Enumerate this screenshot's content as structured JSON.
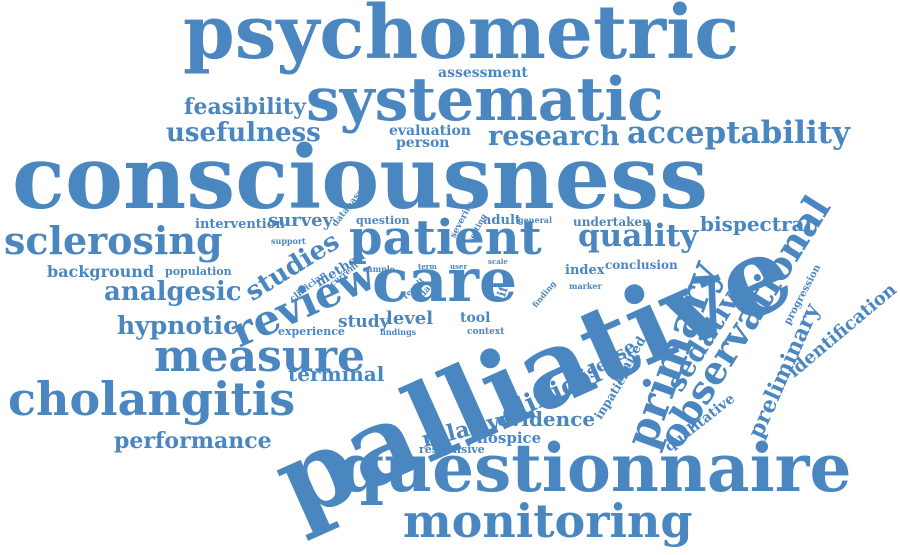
{
  "color": "#4a86c0",
  "words": [
    "psychometric",
    "systematic",
    "assessment",
    "feasibility",
    "usefulness",
    "evaluation",
    "person",
    "research",
    "acceptability",
    "consciousness",
    "database",
    "intervention",
    "survey",
    "question",
    "severity",
    "setting",
    "adult",
    "general",
    "undertaken",
    "bispectral",
    "sclerosing",
    "support",
    "patient",
    "quality",
    "studies",
    "current",
    "method",
    "sample",
    "term",
    "user",
    "scale",
    "background",
    "population",
    "clinician",
    "result",
    "data",
    "life",
    "index",
    "conclusion",
    "marker",
    "finding",
    "progression",
    "analgesic",
    "care",
    "review",
    "palliative",
    "primary",
    "observational",
    "sedative",
    "identification",
    "hypnotic",
    "experience",
    "findings",
    "study",
    "level",
    "tool",
    "context",
    "measure",
    "preliminary",
    "disease",
    "limited",
    "inpatient",
    "terminal",
    "cholangitis",
    "clinical",
    "relative",
    "evidence",
    "qualitative",
    "hospice",
    "responsive",
    "performance",
    "questionnaire",
    "monitoring"
  ]
}
